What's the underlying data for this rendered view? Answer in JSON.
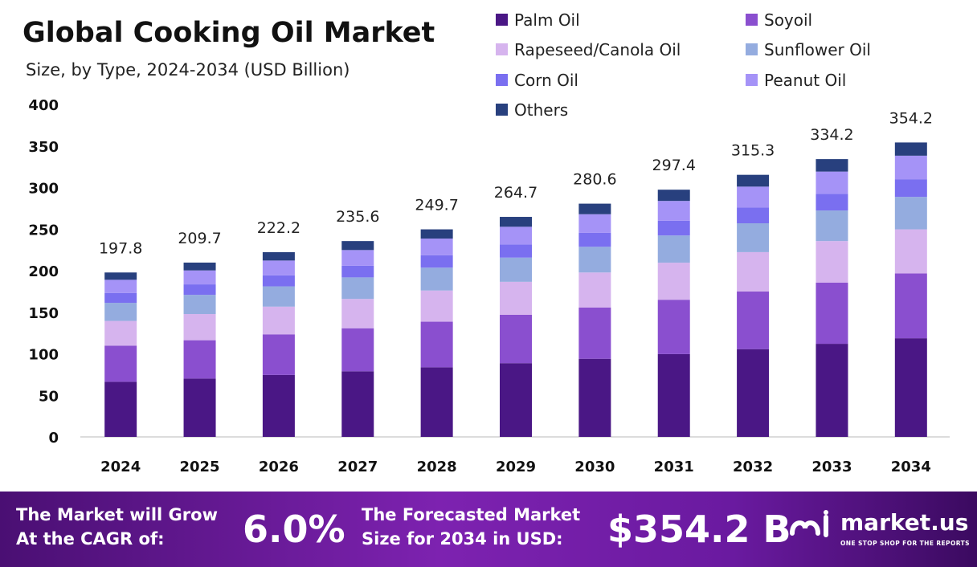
{
  "chart_data": {
    "type": "bar",
    "stacked": true,
    "title": "Global Cooking Oil Market",
    "subtitle": "Size, by Type, 2024-2034 (USD Billion)",
    "xlabel": "",
    "ylabel": "",
    "ylim": [
      0,
      400
    ],
    "yticks": [
      0,
      50,
      100,
      150,
      200,
      250,
      300,
      350,
      400
    ],
    "categories": [
      "2024",
      "2025",
      "2026",
      "2027",
      "2028",
      "2029",
      "2030",
      "2031",
      "2032",
      "2033",
      "2034"
    ],
    "totals": [
      197.8,
      209.7,
      222.2,
      235.6,
      249.7,
      264.7,
      280.6,
      297.4,
      315.3,
      334.2,
      354.2
    ],
    "total_labels": [
      "197.8",
      "209.7",
      "222.2",
      "235.6",
      "249.7",
      "264.7",
      "280.6",
      "297.4",
      "315.3",
      "334.2",
      "354.2"
    ],
    "series": [
      {
        "name": "Palm Oil",
        "color": "#4a1785",
        "values": [
          66.3,
          70.2,
          74.5,
          78.9,
          83.7,
          88.7,
          94.0,
          99.6,
          105.6,
          112.0,
          118.7
        ]
      },
      {
        "name": "Soyoil",
        "color": "#8a4fcf",
        "values": [
          43.5,
          46.1,
          48.9,
          51.8,
          54.9,
          58.2,
          61.7,
          65.4,
          69.4,
          73.5,
          77.9
        ]
      },
      {
        "name": "Rapeseed/Canola Oil",
        "color": "#d6b4ee",
        "values": [
          29.7,
          31.5,
          33.3,
          35.3,
          37.5,
          39.7,
          42.1,
          44.6,
          47.3,
          50.1,
          53.1
        ]
      },
      {
        "name": "Sunflower Oil",
        "color": "#94acdf",
        "values": [
          21.8,
          23.1,
          24.4,
          25.9,
          27.5,
          29.1,
          30.9,
          32.7,
          34.7,
          36.8,
          39.0
        ]
      },
      {
        "name": "Corn Oil",
        "color": "#7a6ff0",
        "values": [
          11.9,
          12.6,
          13.3,
          14.1,
          15.0,
          15.9,
          16.8,
          17.8,
          18.9,
          20.1,
          21.3
        ]
      },
      {
        "name": "Peanut Oil",
        "color": "#a593f7",
        "values": [
          15.8,
          16.8,
          17.8,
          18.8,
          20.0,
          21.2,
          22.4,
          23.8,
          25.2,
          26.7,
          28.3
        ]
      },
      {
        "name": "Others",
        "color": "#28407e",
        "values": [
          8.8,
          9.4,
          10.0,
          10.8,
          11.1,
          11.9,
          12.7,
          13.5,
          14.2,
          15.0,
          15.9
        ]
      }
    ],
    "legend_position": "top-right",
    "grid": false
  },
  "footer": {
    "cagr_label_line1": "The Market will Grow",
    "cagr_label_line2": "At the CAGR of:",
    "cagr_value": "6.0%",
    "forecast_label_line1": "The Forecasted Market",
    "forecast_label_line2": "Size for 2034 in USD:",
    "forecast_value": "$354.2 B",
    "brand_name": "market.us",
    "brand_tagline": "ONE STOP SHOP FOR THE REPORTS"
  }
}
